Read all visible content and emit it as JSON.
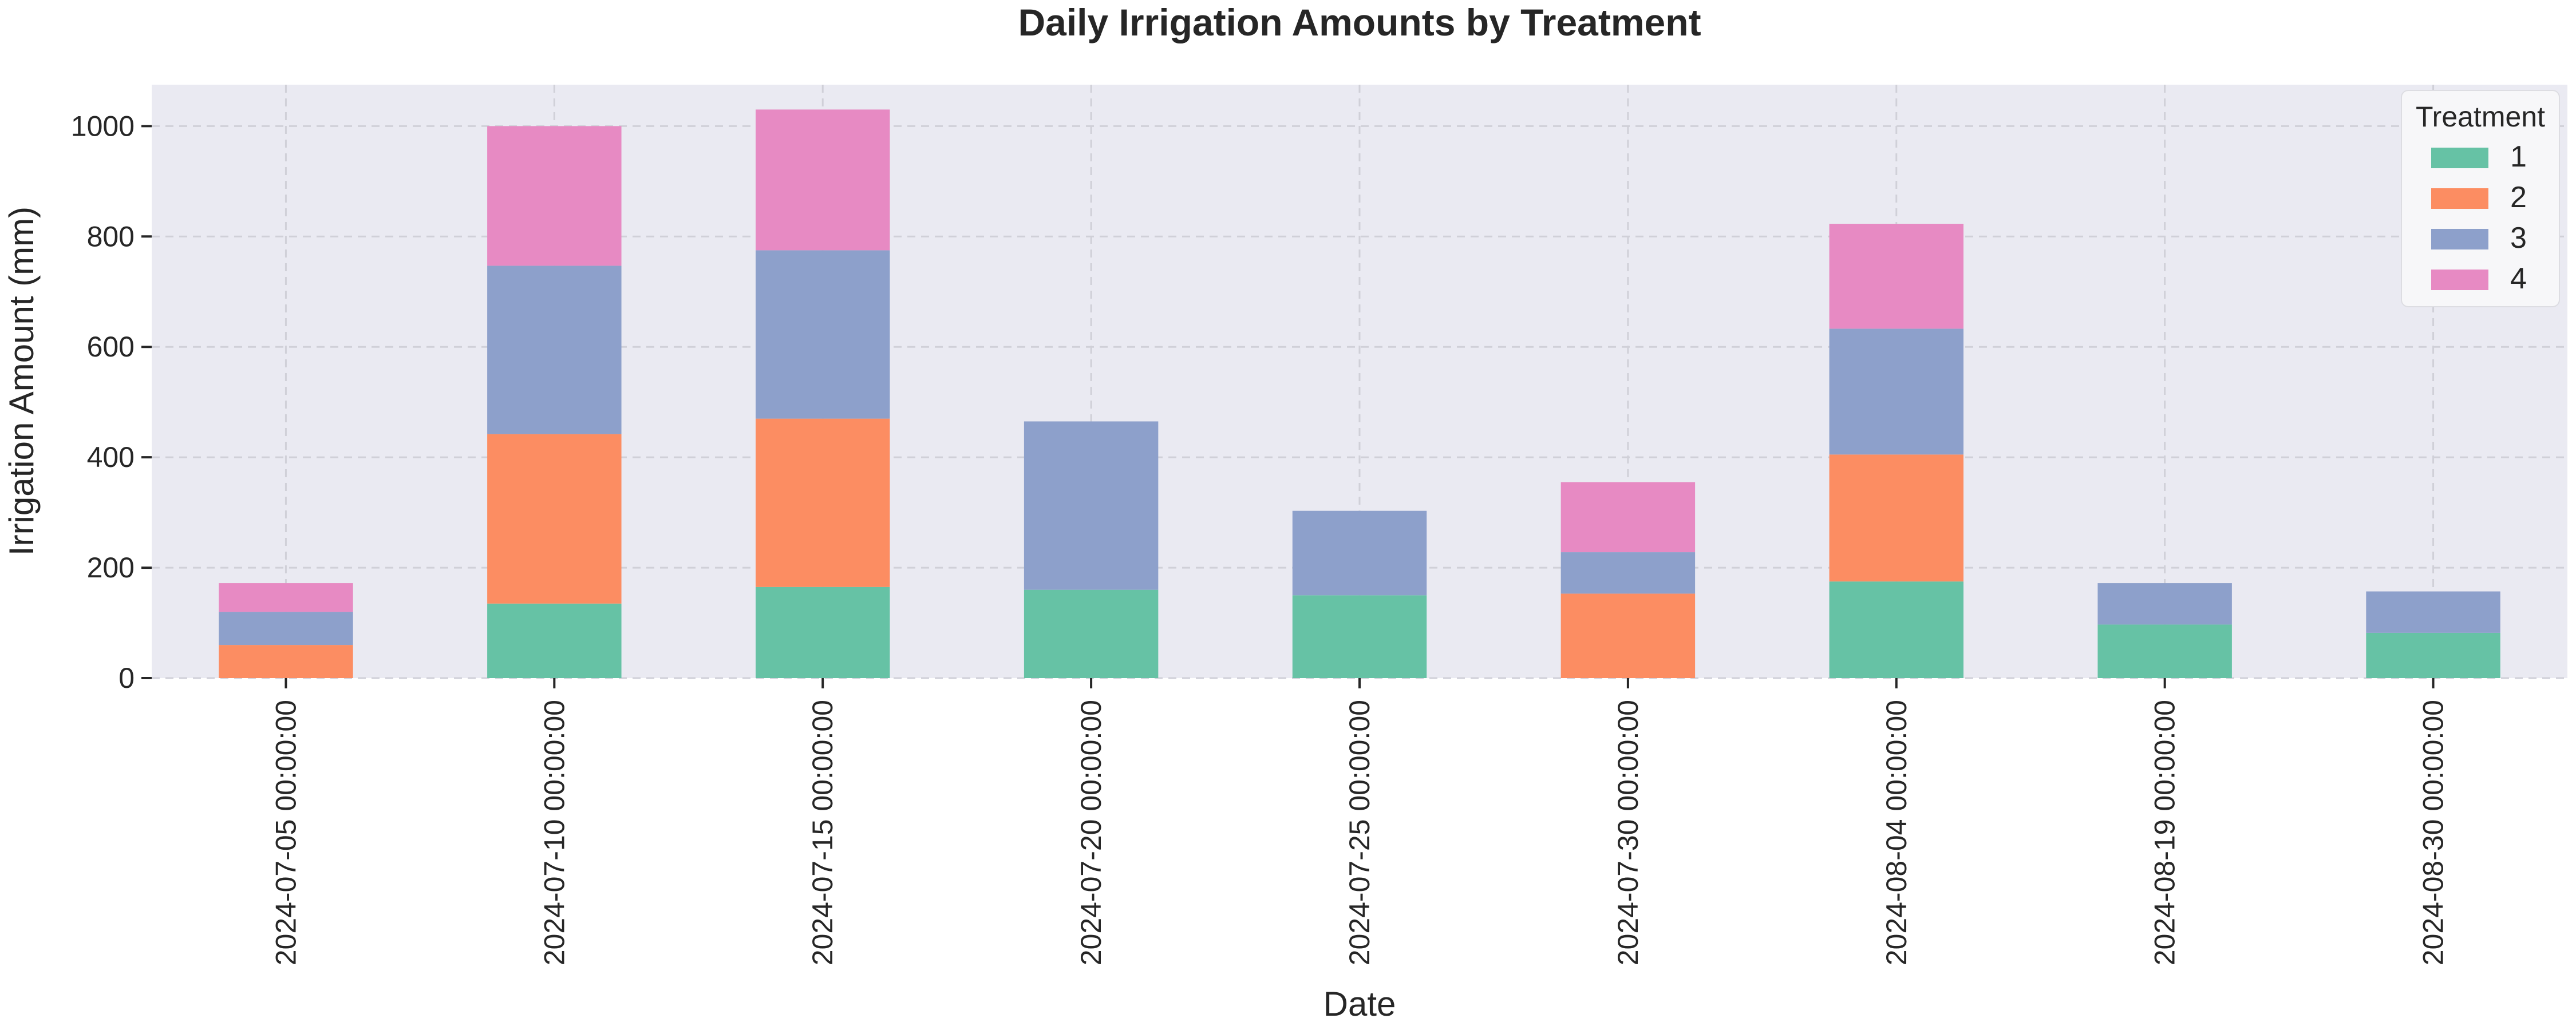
{
  "chart_data": {
    "type": "bar",
    "stacked": true,
    "title": "Daily Irrigation Amounts by Treatment",
    "xlabel": "Date",
    "ylabel": "Irrigation Amount (mm)",
    "ylim": [
      0,
      1075
    ],
    "yticks": [
      0,
      200,
      400,
      600,
      800,
      1000
    ],
    "grid": true,
    "legend": {
      "title": "Treatment",
      "placement": "top-right"
    },
    "categories": [
      "2024-07-05 00:00:00",
      "2024-07-10 00:00:00",
      "2024-07-15 00:00:00",
      "2024-07-20 00:00:00",
      "2024-07-25 00:00:00",
      "2024-07-30 00:00:00",
      "2024-08-04 00:00:00",
      "2024-08-19 00:00:00",
      "2024-08-30 00:00:00"
    ],
    "series": [
      {
        "name": "1",
        "color": "#66c2a5",
        "values": [
          0,
          135,
          165,
          160,
          150,
          0,
          175,
          97,
          82
        ]
      },
      {
        "name": "2",
        "color": "#fc8d62",
        "values": [
          60,
          307,
          305,
          0,
          0,
          153,
          230,
          0,
          0
        ]
      },
      {
        "name": "3",
        "color": "#8da0cb",
        "values": [
          60,
          305,
          305,
          305,
          153,
          75,
          228,
          75,
          75
        ]
      },
      {
        "name": "4",
        "color": "#e78ac3",
        "values": [
          52,
          253,
          255,
          0,
          0,
          127,
          190,
          0,
          0
        ]
      }
    ]
  },
  "colors": {
    "plot_bg": "#eaeaf2",
    "grid": "#d0d0d8",
    "text": "#262626"
  }
}
